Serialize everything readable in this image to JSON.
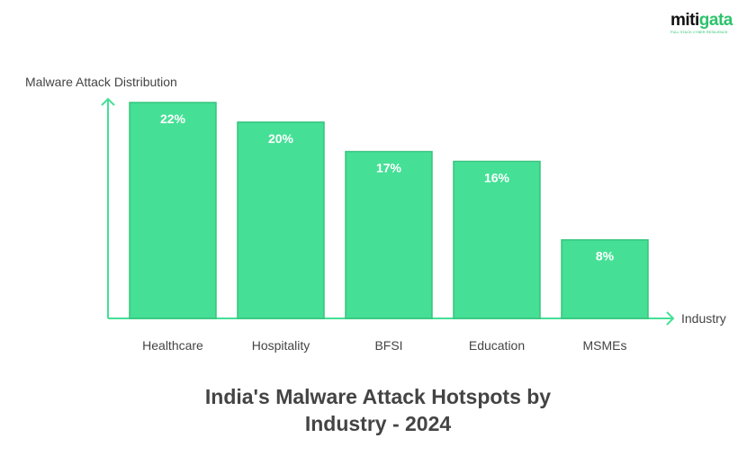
{
  "logo": {
    "word_a": "miti",
    "word_b": "gata",
    "tagline": "FULL STACK CYBER RESILIENCE"
  },
  "chart_data": {
    "type": "bar",
    "title": "India's Malware Attack Hotspots by Industry - 2024",
    "title_lines": [
      "India's Malware Attack Hotspots by",
      "Industry - 2024"
    ],
    "xlabel": "Industry",
    "ylabel": "Malware Attack Distribution",
    "categories": [
      "Healthcare",
      "Hospitality",
      "BFSI",
      "Education",
      "MSMEs"
    ],
    "values": [
      22,
      20,
      17,
      16,
      8
    ],
    "value_labels": [
      "22%",
      "20%",
      "17%",
      "16%",
      "8%"
    ],
    "ylim": [
      0,
      22
    ],
    "grid": false,
    "colors": {
      "bar": "#45e096",
      "bar_border": "#37c47f",
      "axis": "#45e096"
    }
  }
}
